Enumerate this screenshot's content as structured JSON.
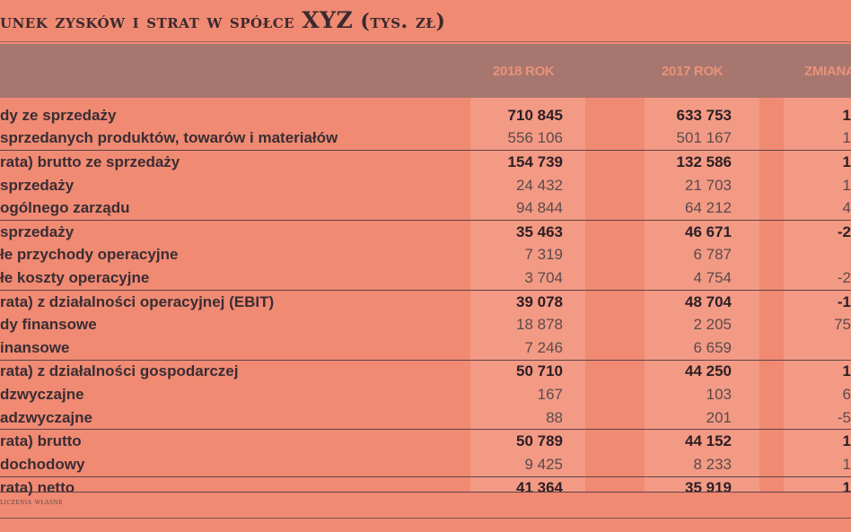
{
  "title": {
    "part1": "unek zysków i strat w spółce ",
    "company": "XYZ",
    "part2": " (tys. zł)"
  },
  "columns": {
    "y2018": "2018 ROK",
    "y2017": "2017 ROK",
    "change": "ZMIANA"
  },
  "rows": [
    {
      "label": "dy ze sprzedaży",
      "v2018": "710 845",
      "v2017": "633 753",
      "change": "1",
      "bold": true,
      "sep": false
    },
    {
      "label": "sprzedanych produktów, towarów i materiałów",
      "v2018": "556 106",
      "v2017": "501 167",
      "change": "1",
      "bold": false,
      "sep": false
    },
    {
      "label": "rata) brutto ze sprzedaży",
      "v2018": "154 739",
      "v2017": "132 586",
      "change": "1",
      "bold": true,
      "sep": true
    },
    {
      "label": "sprzedaży",
      "v2018": "24 432",
      "v2017": "21 703",
      "change": "1",
      "bold": false,
      "sep": false
    },
    {
      "label": "ogólnego zarządu",
      "v2018": "94 844",
      "v2017": "64 212",
      "change": "4",
      "bold": false,
      "sep": false
    },
    {
      "label": "sprzedaży",
      "v2018": "35 463",
      "v2017": "46 671",
      "change": "-2",
      "bold": true,
      "sep": true
    },
    {
      "label": "łe przychody operacyjne",
      "v2018": "7 319",
      "v2017": "6 787",
      "change": "",
      "bold": false,
      "sep": false
    },
    {
      "label": "łe koszty operacyjne",
      "v2018": "3 704",
      "v2017": "4 754",
      "change": "-2",
      "bold": false,
      "sep": false
    },
    {
      "label": "rata) z działalności operacyjnej (EBIT)",
      "v2018": "39 078",
      "v2017": "48 704",
      "change": "-1",
      "bold": true,
      "sep": true
    },
    {
      "label": "dy finansowe",
      "v2018": "18 878",
      "v2017": "2 205",
      "change": "75",
      "bold": false,
      "sep": false
    },
    {
      "label": "inansowe",
      "v2018": "7 246",
      "v2017": "6 659",
      "change": "",
      "bold": false,
      "sep": false
    },
    {
      "label": "rata) z działalności gospodarczej",
      "v2018": "50 710",
      "v2017": "44 250",
      "change": "1",
      "bold": true,
      "sep": true
    },
    {
      "label": "dzwyczajne",
      "v2018": "167",
      "v2017": "103",
      "change": "6",
      "bold": false,
      "sep": false
    },
    {
      "label": "adzwyczajne",
      "v2018": "88",
      "v2017": "201",
      "change": "-5",
      "bold": false,
      "sep": false
    },
    {
      "label": "rata) brutto",
      "v2018": "50 789",
      "v2017": "44 152",
      "change": "1",
      "bold": true,
      "sep": true
    },
    {
      "label": "dochodowy",
      "v2018": "9 425",
      "v2017": "8 233",
      "change": "1",
      "bold": false,
      "sep": false
    },
    {
      "label": "rata) netto",
      "v2018": "41 364",
      "v2017": "35 919",
      "change": "1",
      "bold": true,
      "sep": true
    }
  ],
  "source": "liczenia własne"
}
